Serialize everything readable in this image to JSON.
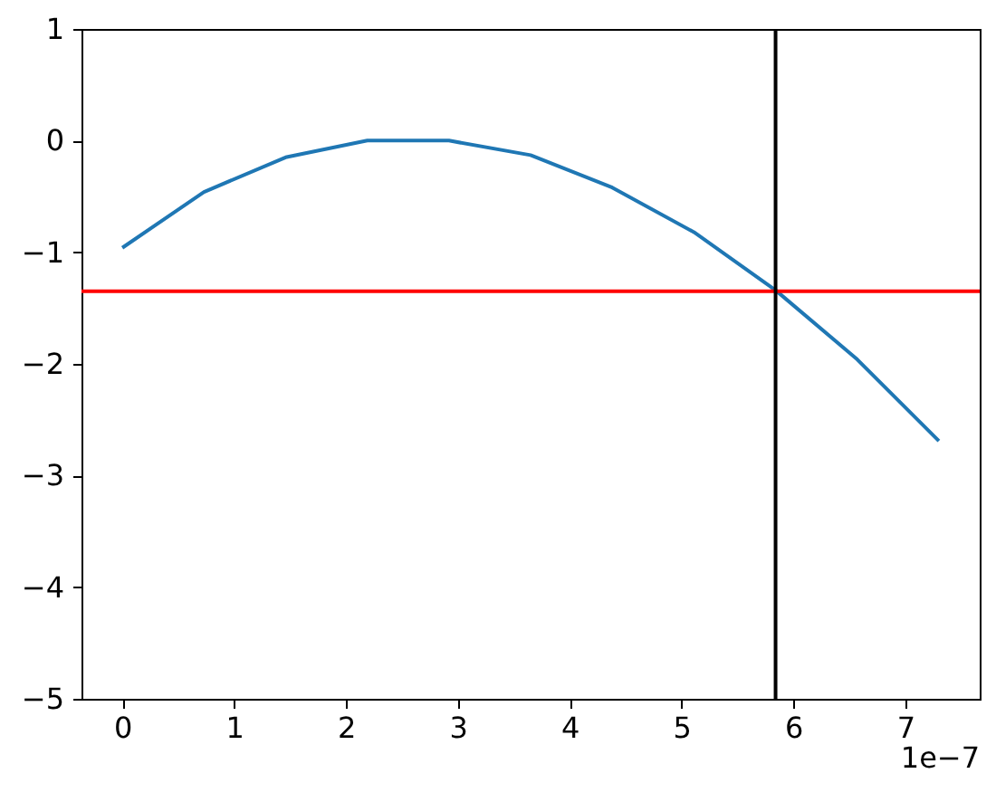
{
  "chart_data": {
    "type": "line",
    "x": [
      0,
      0.73,
      1.46,
      2.19,
      2.92,
      3.65,
      4.38,
      5.11,
      5.84,
      6.57,
      7.3
    ],
    "series": [
      {
        "color": "#1f77b4",
        "values": [
          -0.96,
          -0.46,
          -0.15,
          0,
          0,
          -0.13,
          -0.42,
          -0.82,
          -1.34,
          -1.96,
          -2.69
        ]
      }
    ],
    "xlim": [
      -0.365,
      7.665
    ],
    "xticks": [
      0,
      1,
      2,
      3,
      4,
      5,
      6,
      7
    ],
    "ylim": [
      -5,
      1
    ],
    "yticks": [
      -5,
      -4,
      -3,
      -2,
      -1,
      0,
      1
    ],
    "ref_lines": [
      {
        "axis": "y",
        "value": -1.35,
        "color": "#ff0000"
      },
      {
        "axis": "x",
        "value": 5.84,
        "color": "#000000"
      }
    ],
    "annotations": [
      "1e−7"
    ],
    "grid": false
  }
}
